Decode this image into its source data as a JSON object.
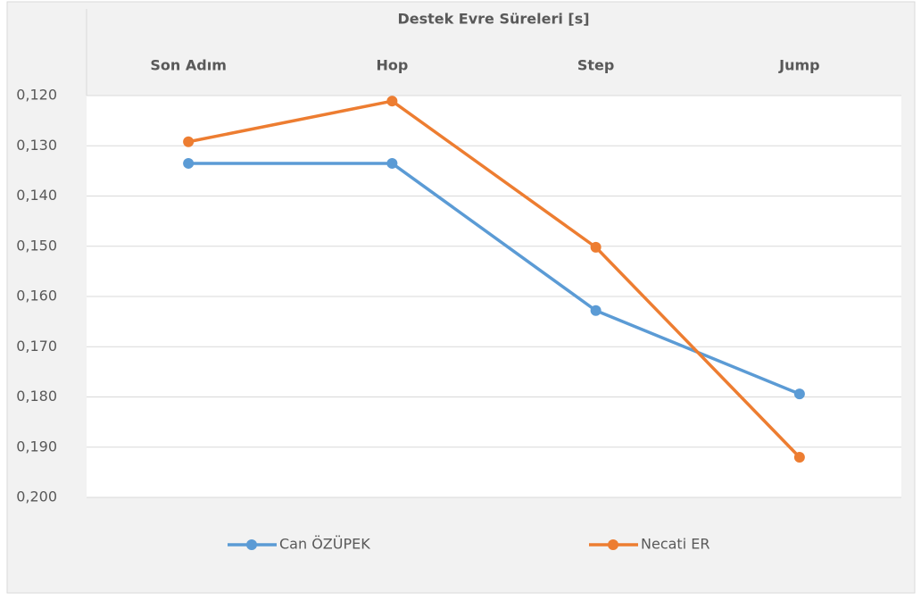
{
  "chart_data": {
    "type": "line",
    "title": "Destek Evre Süreleri  [s]",
    "categories": [
      "Son Adım",
      "Hop",
      "Step",
      "Jump"
    ],
    "series": [
      {
        "name": "Can ÖZÜPEK",
        "color": "#5b9bd5",
        "values": [
          0.1335,
          0.1335,
          0.1628,
          0.1794
        ]
      },
      {
        "name": "Necati ER",
        "color": "#ed7d31",
        "values": [
          0.1292,
          0.1211,
          0.1502,
          0.192
        ]
      }
    ],
    "ylim": [
      0.12,
      0.2
    ],
    "y_reversed": true,
    "yticks": [
      {
        "value": 0.12,
        "label": "0,120"
      },
      {
        "value": 0.13,
        "label": "0,130"
      },
      {
        "value": 0.14,
        "label": "0,140"
      },
      {
        "value": 0.15,
        "label": "0,150"
      },
      {
        "value": 0.16,
        "label": "0,160"
      },
      {
        "value": 0.17,
        "label": "0,170"
      },
      {
        "value": 0.18,
        "label": "0,180"
      },
      {
        "value": 0.19,
        "label": "0,190"
      },
      {
        "value": 0.2,
        "label": "0,200"
      }
    ],
    "grid": true,
    "legend": "bottom"
  }
}
